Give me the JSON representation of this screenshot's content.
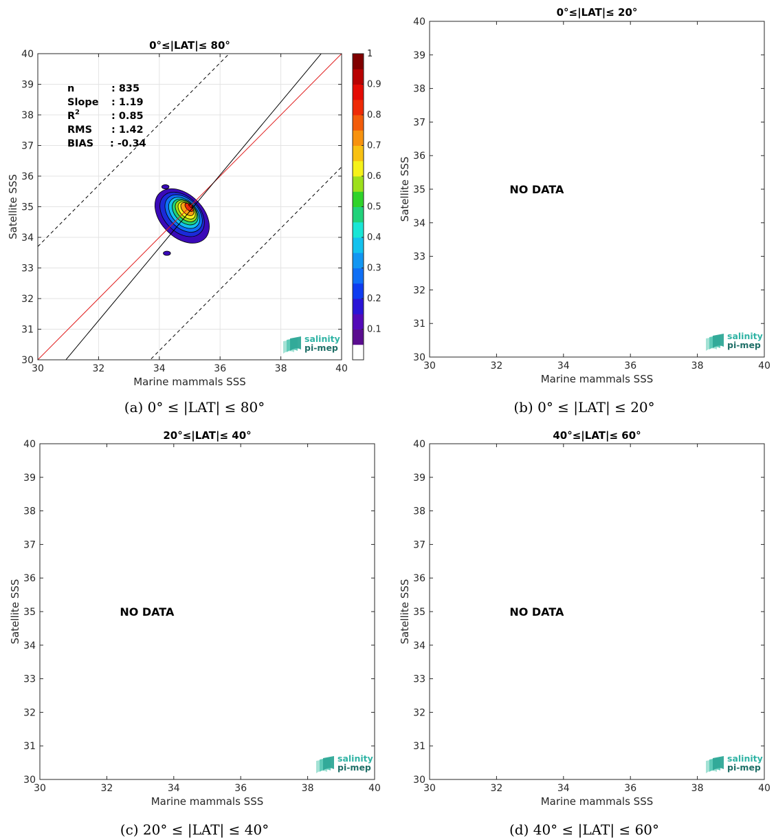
{
  "chart_data": [
    {
      "type": "heatmap",
      "title": "0°≤|LAT|≤ 80°",
      "caption": "(a) 0° ≤ |LAT| ≤ 80°",
      "xlabel": "Marine mammals SSS",
      "ylabel": "Satellite SSS",
      "xlim": [
        30,
        40
      ],
      "ylim": [
        30,
        40
      ],
      "xticks": [
        "30",
        "32",
        "34",
        "36",
        "38",
        "40"
      ],
      "yticks": [
        "30",
        "31",
        "32",
        "33",
        "34",
        "35",
        "36",
        "37",
        "38",
        "39",
        "40"
      ],
      "grid": true,
      "stats": [
        {
          "label": "n",
          "value": ": 835"
        },
        {
          "label": "Slope",
          "value": ": 1.19"
        },
        {
          "label": "R",
          "sup": "2",
          "value": ": 0.85"
        },
        {
          "label": "RMS",
          "value": ": 1.42"
        },
        {
          "label": "BIAS",
          "value": ": -0.34"
        }
      ],
      "colorbar": {
        "ticks": [
          "0.1",
          "0.2",
          "0.3",
          "0.4",
          "0.5",
          "0.6",
          "0.7",
          "0.8",
          "0.9",
          "1"
        ],
        "colors": [
          "#ffffff",
          "#5a0d8f",
          "#5309b8",
          "#2a14d6",
          "#0e3cf0",
          "#0f6ff5",
          "#1296f2",
          "#13c2ee",
          "#19e6d6",
          "#21d27a",
          "#2fd32b",
          "#9de01c",
          "#f6f21a",
          "#f8c112",
          "#f7920e",
          "#f25c0a",
          "#ee2a06",
          "#e40b04",
          "#b80202",
          "#800000"
        ]
      },
      "lines": {
        "identity": {
          "slope": 1,
          "intercept": 0,
          "color": "#e01c1c"
        },
        "fit": {
          "slope": 1.19,
          "intercept": -6.8
        },
        "dashed_offsets": [
          -3.7,
          3.7
        ]
      },
      "density_levels": [
        {
          "level": 0.05,
          "center": [
            34.75,
            34.7
          ],
          "rx": 0.7,
          "ry": 1.05,
          "rot": -45,
          "color": "#3a0ab8"
        },
        {
          "level": 0.15,
          "center": [
            34.75,
            34.75
          ],
          "rx": 0.58,
          "ry": 0.85,
          "rot": -45,
          "color": "#1b2ad8"
        },
        {
          "level": 0.25,
          "center": [
            34.8,
            34.78
          ],
          "rx": 0.48,
          "ry": 0.72,
          "rot": -45,
          "color": "#0f6ff5"
        },
        {
          "level": 0.35,
          "center": [
            34.82,
            34.8
          ],
          "rx": 0.4,
          "ry": 0.6,
          "rot": -45,
          "color": "#13c2ee"
        },
        {
          "level": 0.45,
          "center": [
            34.85,
            34.83
          ],
          "rx": 0.33,
          "ry": 0.5,
          "rot": -45,
          "color": "#21d27a"
        },
        {
          "level": 0.55,
          "center": [
            34.88,
            34.86
          ],
          "rx": 0.27,
          "ry": 0.42,
          "rot": -45,
          "color": "#9de01c"
        },
        {
          "level": 0.65,
          "center": [
            34.9,
            34.88
          ],
          "rx": 0.21,
          "ry": 0.34,
          "rot": -45,
          "color": "#f6f21a"
        },
        {
          "level": 0.75,
          "center": [
            34.92,
            34.92
          ],
          "rx": 0.15,
          "ry": 0.26,
          "rot": -45,
          "color": "#f8a012"
        },
        {
          "level": 0.85,
          "center": [
            34.98,
            34.98
          ],
          "rx": 0.09,
          "ry": 0.17,
          "rot": -45,
          "color": "#ee2a06"
        },
        {
          "level": 0.95,
          "center": [
            35.03,
            35.03
          ],
          "rx": 0.04,
          "ry": 0.08,
          "rot": -45,
          "color": "#9a0000"
        }
      ],
      "isolated_blobs": [
        {
          "center": [
            34.25,
            33.48
          ],
          "rx": 0.12,
          "ry": 0.07,
          "color": "#3a0ab8"
        },
        {
          "center": [
            34.2,
            35.65
          ],
          "rx": 0.12,
          "ry": 0.07,
          "color": "#3a0ab8"
        }
      ],
      "logo": {
        "line1": "salinity",
        "line2": "pi-mep"
      }
    },
    {
      "type": "scatter",
      "title": "0°≤|LAT|≤ 20°",
      "caption": "(b) 0° ≤ |LAT| ≤ 20°",
      "xlabel": "Marine mammals SSS",
      "ylabel": "Satellite SSS",
      "xlim": [
        30,
        40
      ],
      "ylim": [
        30,
        40
      ],
      "xticks": [
        "30",
        "32",
        "34",
        "36",
        "38",
        "40"
      ],
      "yticks": [
        "30",
        "31",
        "32",
        "33",
        "34",
        "35",
        "36",
        "37",
        "38",
        "39",
        "40"
      ],
      "grid": false,
      "message": "NO DATA",
      "logo": {
        "line1": "salinity",
        "line2": "pi-mep"
      }
    },
    {
      "type": "scatter",
      "title": "20°≤|LAT|≤ 40°",
      "caption": "(c) 20° ≤ |LAT| ≤ 40°",
      "xlabel": "Marine mammals SSS",
      "ylabel": "Satellite SSS",
      "xlim": [
        30,
        40
      ],
      "ylim": [
        30,
        40
      ],
      "xticks": [
        "30",
        "32",
        "34",
        "36",
        "38",
        "40"
      ],
      "yticks": [
        "30",
        "31",
        "32",
        "33",
        "34",
        "35",
        "36",
        "37",
        "38",
        "39",
        "40"
      ],
      "grid": false,
      "message": "NO DATA",
      "logo": {
        "line1": "salinity",
        "line2": "pi-mep"
      }
    },
    {
      "type": "scatter",
      "title": "40°≤|LAT|≤ 60°",
      "caption": "(d) 40° ≤ |LAT| ≤ 60°",
      "xlabel": "Marine mammals SSS",
      "ylabel": "Satellite SSS",
      "xlim": [
        30,
        40
      ],
      "ylim": [
        30,
        40
      ],
      "xticks": [
        "30",
        "32",
        "34",
        "36",
        "38",
        "40"
      ],
      "yticks": [
        "30",
        "31",
        "32",
        "33",
        "34",
        "35",
        "36",
        "37",
        "38",
        "39",
        "40"
      ],
      "grid": false,
      "message": "NO DATA",
      "logo": {
        "line1": "salinity",
        "line2": "pi-mep"
      }
    }
  ]
}
